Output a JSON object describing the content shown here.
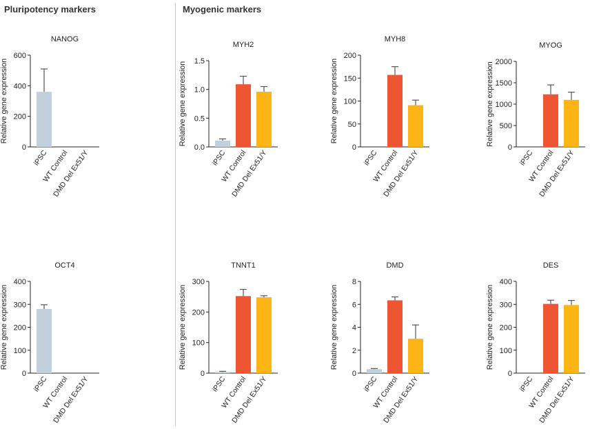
{
  "sections": {
    "pluripotency": "Pluripotency markers",
    "myogenic": "Myogenic markers"
  },
  "colors": {
    "ipsc": "#c2d0de",
    "wt_control": "#ee5533",
    "dmd_del": "#fcb514",
    "axis": "#222222"
  },
  "chart_data": [
    {
      "type": "bar",
      "title": "NANOG",
      "ylabel": "Relative gene expression",
      "ylim": [
        0,
        600
      ],
      "yticks": [
        0,
        200,
        400,
        600
      ],
      "tick_labels": [
        "0",
        "200",
        "400",
        "600"
      ],
      "categories": [
        "iPSC",
        "WT Control",
        "DMD Del Ex51/Y"
      ],
      "values": [
        360,
        0,
        0
      ],
      "errors": [
        150,
        0,
        0
      ]
    },
    {
      "type": "bar",
      "title": "MYH2",
      "ylabel": "Relative gene expression",
      "ylim": [
        0,
        1.5
      ],
      "yticks": [
        0,
        0.5,
        1.0,
        1.5
      ],
      "tick_labels": [
        "0.0",
        "0.5",
        "1.0",
        "1.5"
      ],
      "categories": [
        "iPSC",
        "WT Control",
        "DMD Del Ex51/Y"
      ],
      "values": [
        0.11,
        1.09,
        0.96
      ],
      "errors": [
        0.03,
        0.14,
        0.09
      ]
    },
    {
      "type": "bar",
      "title": "MYH8",
      "ylabel": "Relative gene expression",
      "ylim": [
        0,
        200
      ],
      "yticks": [
        0,
        50,
        100,
        150,
        200
      ],
      "tick_labels": [
        "0",
        "50",
        "100",
        "150",
        "200"
      ],
      "categories": [
        "iPSC",
        "WT Control",
        "DMD Del Ex51/Y"
      ],
      "values": [
        0,
        157,
        91
      ],
      "errors": [
        0,
        18,
        11
      ]
    },
    {
      "type": "bar",
      "title": "MYOG",
      "ylabel": "Relative gene expression",
      "ylim": [
        0,
        2000
      ],
      "yticks": [
        0,
        500,
        1000,
        1500,
        2000
      ],
      "tick_labels": [
        "0",
        "500",
        "1000",
        "1500",
        "2000"
      ],
      "categories": [
        "iPSC",
        "WT Control",
        "DMD Del Ex51/Y"
      ],
      "values": [
        0,
        1230,
        1100
      ],
      "errors": [
        0,
        220,
        180
      ]
    },
    {
      "type": "bar",
      "title": "OCT4",
      "ylabel": "Relative gene expression",
      "ylim": [
        0,
        400
      ],
      "yticks": [
        0,
        100,
        200,
        300,
        400
      ],
      "tick_labels": [
        "0",
        "100",
        "200",
        "300",
        "400"
      ],
      "categories": [
        "iPSC",
        "WT Control",
        "DMD Del Ex51/Y"
      ],
      "values": [
        280,
        0,
        0
      ],
      "errors": [
        18,
        0,
        0
      ]
    },
    {
      "type": "bar",
      "title": "TNNT1",
      "ylabel": "Relative gene expression",
      "ylim": [
        0,
        300
      ],
      "yticks": [
        0,
        100,
        200,
        300
      ],
      "tick_labels": [
        "0",
        "100",
        "200",
        "300"
      ],
      "categories": [
        "iPSC",
        "WT Control",
        "DMD Del Ex51/Y"
      ],
      "values": [
        4,
        252,
        248
      ],
      "errors": [
        2,
        22,
        5
      ]
    },
    {
      "type": "bar",
      "title": "DMD",
      "ylabel": "Relative gene expression",
      "ylim": [
        0,
        8
      ],
      "yticks": [
        0,
        2,
        4,
        6,
        8
      ],
      "tick_labels": [
        "0",
        "2",
        "4",
        "6",
        "8"
      ],
      "categories": [
        "iPSC",
        "WT Control",
        "DMD Del Ex51/Y"
      ],
      "values": [
        0.35,
        6.35,
        3.0
      ],
      "errors": [
        0.05,
        0.3,
        1.2
      ]
    },
    {
      "type": "bar",
      "title": "DES",
      "ylabel": "Relative gene expression",
      "ylim": [
        0,
        400
      ],
      "yticks": [
        0,
        100,
        200,
        300,
        400
      ],
      "tick_labels": [
        "0",
        "100",
        "200",
        "300",
        "400"
      ],
      "categories": [
        "iPSC",
        "WT Control",
        "DMD Del Ex51/Y"
      ],
      "values": [
        0,
        302,
        297
      ],
      "errors": [
        0,
        16,
        20
      ]
    }
  ]
}
